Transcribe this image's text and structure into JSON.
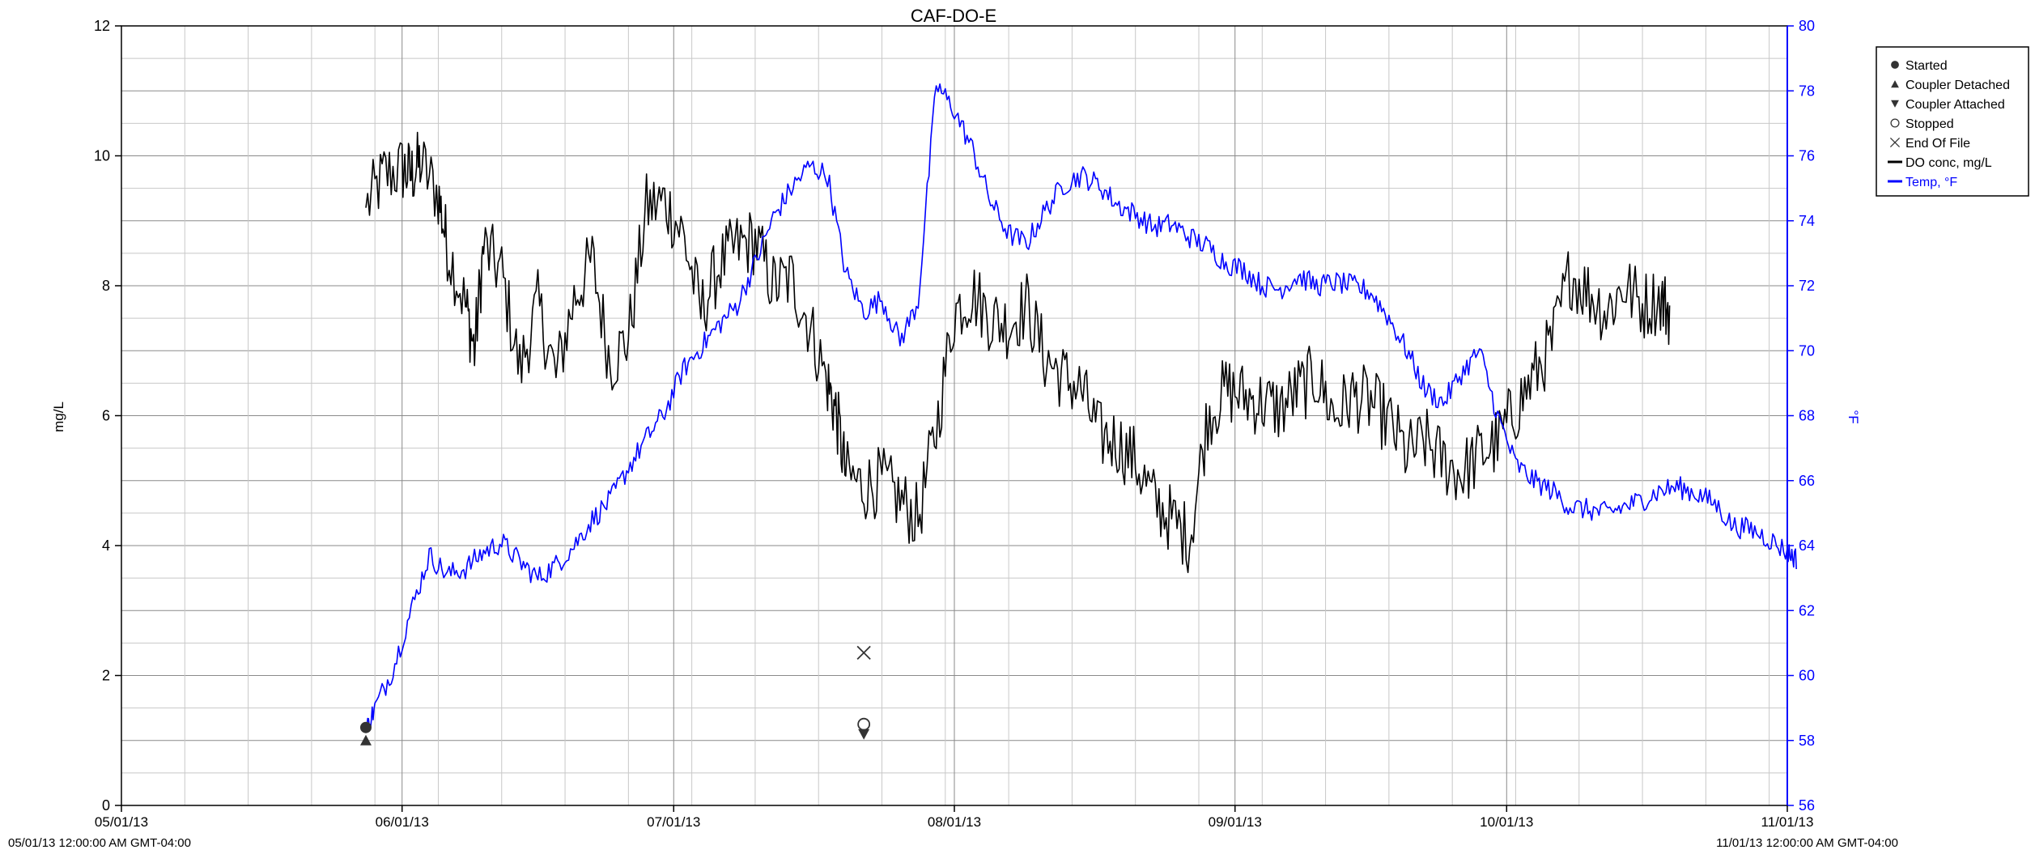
{
  "chart_data": {
    "type": "line",
    "title": "CAF-DO-E",
    "x_axis": {
      "type": "date",
      "range": [
        "2013-05-01",
        "2013-11-01"
      ],
      "tick_dates": [
        "2013-05-01",
        "2013-06-01",
        "2013-07-01",
        "2013-08-01",
        "2013-09-01",
        "2013-10-01",
        "2013-11-01"
      ],
      "tick_labels": [
        "05/01/13",
        "06/01/13",
        "07/01/13",
        "08/01/13",
        "09/01/13",
        "10/01/13",
        "11/01/13"
      ],
      "start_label": "05/01/13 12:00:00 AM GMT-04:00",
      "end_label": "11/01/13 12:00:00 AM GMT-04:00"
    },
    "y_axis_left": {
      "label": "mg/L",
      "range": [
        0,
        12
      ],
      "ticks": [
        0,
        2,
        4,
        6,
        8,
        10,
        12
      ]
    },
    "y_axis_right": {
      "label": "°F",
      "range": [
        56,
        80
      ],
      "ticks": [
        56,
        58,
        60,
        62,
        64,
        66,
        68,
        70,
        72,
        74,
        76,
        78,
        80
      ],
      "color": "#0000ff"
    },
    "grid": true,
    "legend_position": "right",
    "legend": [
      {
        "label": "Started",
        "symbol": "filled-circle"
      },
      {
        "label": "Coupler Detached",
        "symbol": "filled-triangle-up"
      },
      {
        "label": "Coupler Attached",
        "symbol": "filled-triangle-down"
      },
      {
        "label": "Stopped",
        "symbol": "open-circle"
      },
      {
        "label": "End Of File",
        "symbol": "x"
      },
      {
        "label": "DO conc, mg/L",
        "symbol": "line",
        "color": "#000000"
      },
      {
        "label": "Temp, °F",
        "symbol": "line",
        "color": "#0000ff"
      }
    ],
    "series": [
      {
        "name": "DO conc, mg/L",
        "axis": "left",
        "color": "#000000",
        "points": [
          [
            "2013-05-28",
            9.2
          ],
          [
            "2013-05-30",
            9.7
          ],
          [
            "2013-06-01",
            9.8
          ],
          [
            "2013-06-02",
            9.7
          ],
          [
            "2013-06-03",
            9.9
          ],
          [
            "2013-06-05",
            9.4
          ],
          [
            "2013-06-06",
            8.6
          ],
          [
            "2013-06-08",
            7.7
          ],
          [
            "2013-06-09",
            7.0
          ],
          [
            "2013-06-10",
            8.6
          ],
          [
            "2013-06-12",
            8.2
          ],
          [
            "2013-06-14",
            6.7
          ],
          [
            "2013-06-16",
            7.7
          ],
          [
            "2013-06-18",
            6.6
          ],
          [
            "2013-06-20",
            7.8
          ],
          [
            "2013-06-22",
            8.4
          ],
          [
            "2013-06-24",
            6.8
          ],
          [
            "2013-06-26",
            7.2
          ],
          [
            "2013-06-28",
            9.2
          ],
          [
            "2013-06-30",
            9.3
          ],
          [
            "2013-07-02",
            8.8
          ],
          [
            "2013-07-04",
            7.6
          ],
          [
            "2013-07-06",
            8.3
          ],
          [
            "2013-07-08",
            8.6
          ],
          [
            "2013-07-10",
            8.7
          ],
          [
            "2013-07-12",
            8.0
          ],
          [
            "2013-07-14",
            8.1
          ],
          [
            "2013-07-16",
            7.4
          ],
          [
            "2013-07-18",
            6.5
          ],
          [
            "2013-07-19",
            6.0
          ],
          [
            "2013-07-20",
            5.1
          ],
          [
            "2013-07-22",
            4.9
          ],
          [
            "2013-07-24",
            5.0
          ],
          [
            "2013-07-26",
            4.7
          ],
          [
            "2013-07-28",
            4.4
          ],
          [
            "2013-07-30",
            5.8
          ],
          [
            "2013-08-01",
            7.6
          ],
          [
            "2013-08-03",
            7.9
          ],
          [
            "2013-08-05",
            7.5
          ],
          [
            "2013-08-07",
            7.4
          ],
          [
            "2013-08-09",
            7.7
          ],
          [
            "2013-08-11",
            6.9
          ],
          [
            "2013-08-13",
            6.6
          ],
          [
            "2013-08-15",
            6.4
          ],
          [
            "2013-08-17",
            5.7
          ],
          [
            "2013-08-19",
            5.6
          ],
          [
            "2013-08-21",
            5.3
          ],
          [
            "2013-08-23",
            4.7
          ],
          [
            "2013-08-25",
            4.4
          ],
          [
            "2013-08-27",
            4.1
          ],
          [
            "2013-08-29",
            6.0
          ],
          [
            "2013-08-31",
            6.4
          ],
          [
            "2013-09-02",
            6.3
          ],
          [
            "2013-09-04",
            6.2
          ],
          [
            "2013-09-06",
            6.1
          ],
          [
            "2013-09-08",
            6.4
          ],
          [
            "2013-09-10",
            6.6
          ],
          [
            "2013-09-12",
            6.0
          ],
          [
            "2013-09-14",
            6.3
          ],
          [
            "2013-09-16",
            6.2
          ],
          [
            "2013-09-18",
            5.9
          ],
          [
            "2013-09-20",
            5.4
          ],
          [
            "2013-09-22",
            5.6
          ],
          [
            "2013-09-24",
            5.3
          ],
          [
            "2013-09-26",
            5.1
          ],
          [
            "2013-09-28",
            5.4
          ],
          [
            "2013-09-30",
            5.6
          ],
          [
            "2013-10-02",
            6.1
          ],
          [
            "2013-10-04",
            6.6
          ],
          [
            "2013-10-06",
            7.1
          ],
          [
            "2013-10-08",
            8.2
          ],
          [
            "2013-10-10",
            7.9
          ],
          [
            "2013-10-12",
            7.6
          ],
          [
            "2013-10-14",
            8.0
          ],
          [
            "2013-10-16",
            7.7
          ],
          [
            "2013-10-18",
            7.8
          ],
          [
            "2013-10-19",
            7.6
          ]
        ]
      },
      {
        "name": "Temp, °F",
        "axis": "right",
        "color": "#0000ff",
        "points": [
          [
            "2013-05-28",
            58.3
          ],
          [
            "2013-05-29",
            59.0
          ],
          [
            "2013-05-31",
            60.2
          ],
          [
            "2013-06-02",
            62.0
          ],
          [
            "2013-06-04",
            63.7
          ],
          [
            "2013-06-06",
            63.1
          ],
          [
            "2013-06-08",
            63.3
          ],
          [
            "2013-06-10",
            63.8
          ],
          [
            "2013-06-12",
            64.1
          ],
          [
            "2013-06-14",
            63.5
          ],
          [
            "2013-06-16",
            63.0
          ],
          [
            "2013-06-18",
            63.4
          ],
          [
            "2013-06-20",
            64.0
          ],
          [
            "2013-06-22",
            64.8
          ],
          [
            "2013-06-24",
            65.4
          ],
          [
            "2013-06-26",
            66.4
          ],
          [
            "2013-06-28",
            67.3
          ],
          [
            "2013-06-30",
            68.1
          ],
          [
            "2013-07-02",
            69.4
          ],
          [
            "2013-07-04",
            70.1
          ],
          [
            "2013-07-06",
            70.8
          ],
          [
            "2013-07-08",
            71.4
          ],
          [
            "2013-07-10",
            72.7
          ],
          [
            "2013-07-12",
            74.1
          ],
          [
            "2013-07-14",
            75.0
          ],
          [
            "2013-07-16",
            75.7
          ],
          [
            "2013-07-18",
            75.4
          ],
          [
            "2013-07-20",
            72.4
          ],
          [
            "2013-07-22",
            71.2
          ],
          [
            "2013-07-24",
            71.6
          ],
          [
            "2013-07-26",
            70.3
          ],
          [
            "2013-07-28",
            71.5
          ],
          [
            "2013-07-30",
            78.2
          ],
          [
            "2013-08-01",
            77.4
          ],
          [
            "2013-08-03",
            76.2
          ],
          [
            "2013-08-05",
            74.6
          ],
          [
            "2013-08-07",
            73.6
          ],
          [
            "2013-08-09",
            73.3
          ],
          [
            "2013-08-11",
            74.3
          ],
          [
            "2013-08-13",
            75.1
          ],
          [
            "2013-08-15",
            75.4
          ],
          [
            "2013-08-17",
            75.1
          ],
          [
            "2013-08-19",
            74.5
          ],
          [
            "2013-08-21",
            74.2
          ],
          [
            "2013-08-23",
            73.8
          ],
          [
            "2013-08-25",
            73.9
          ],
          [
            "2013-08-27",
            73.5
          ],
          [
            "2013-08-29",
            73.2
          ],
          [
            "2013-08-31",
            72.7
          ],
          [
            "2013-09-02",
            72.5
          ],
          [
            "2013-09-04",
            72.0
          ],
          [
            "2013-09-06",
            71.9
          ],
          [
            "2013-09-08",
            72.3
          ],
          [
            "2013-09-10",
            72.0
          ],
          [
            "2013-09-12",
            72.1
          ],
          [
            "2013-09-14",
            72.0
          ],
          [
            "2013-09-16",
            71.8
          ],
          [
            "2013-09-18",
            71.0
          ],
          [
            "2013-09-20",
            70.0
          ],
          [
            "2013-09-22",
            68.8
          ],
          [
            "2013-09-24",
            68.4
          ],
          [
            "2013-09-26",
            69.3
          ],
          [
            "2013-09-28",
            70.0
          ],
          [
            "2013-09-30",
            68.0
          ],
          [
            "2013-10-02",
            66.5
          ],
          [
            "2013-10-04",
            66.0
          ],
          [
            "2013-10-06",
            65.7
          ],
          [
            "2013-10-08",
            65.2
          ],
          [
            "2013-10-10",
            65.1
          ],
          [
            "2013-10-12",
            65.0
          ],
          [
            "2013-10-14",
            65.2
          ],
          [
            "2013-10-16",
            65.4
          ],
          [
            "2013-10-18",
            65.7
          ],
          [
            "2013-10-20",
            65.8
          ],
          [
            "2013-10-22",
            65.6
          ],
          [
            "2013-10-24",
            65.3
          ],
          [
            "2013-10-26",
            64.6
          ],
          [
            "2013-10-28",
            64.5
          ],
          [
            "2013-10-30",
            64.2
          ],
          [
            "2013-11-01",
            63.8
          ],
          [
            "2013-11-02",
            63.6
          ]
        ]
      }
    ],
    "markers": [
      {
        "label": "Started",
        "symbol": "filled-circle",
        "date": "2013-05-28",
        "y": 1.2
      },
      {
        "label": "Coupler Detached",
        "symbol": "filled-triangle-up",
        "date": "2013-05-28",
        "y": 1.0
      },
      {
        "label": "Stopped",
        "symbol": "open-circle",
        "date": "2013-07-22",
        "y": 1.25
      },
      {
        "label": "Coupler Attached",
        "symbol": "filled-triangle-down",
        "date": "2013-07-22",
        "y": 1.1
      },
      {
        "label": "End Of File",
        "symbol": "x",
        "date": "2013-07-22",
        "y": 2.35
      }
    ]
  }
}
